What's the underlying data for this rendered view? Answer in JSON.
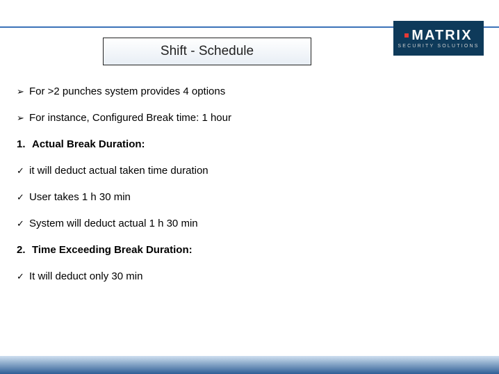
{
  "colors": {
    "rule": "#3b72b8",
    "logo_bg": "#0e3a5a",
    "logo_accent": "#e53935",
    "bottom_grad_top": "#cfe0f0",
    "bottom_grad_bottom": "#2f5f96"
  },
  "logo": {
    "brand": "MATRIX",
    "tagline": "SECURITY SOLUTIONS"
  },
  "title": "Shift - Schedule",
  "items": [
    {
      "kind": "arrow",
      "text": "For >2 punches system provides 4 options",
      "bold": false
    },
    {
      "kind": "arrow",
      "text": "For instance, Configured Break time: 1 hour",
      "bold": false
    },
    {
      "kind": "num",
      "num": "1.",
      "text": "Actual Break Duration:",
      "bold": true
    },
    {
      "kind": "check",
      "text": " it will deduct actual  taken time duration",
      "bold": false
    },
    {
      "kind": "check",
      "text": "User takes 1 h 30 min",
      "bold": false
    },
    {
      "kind": "check",
      "text": "System will deduct actual 1 h 30 min",
      "bold": false
    },
    {
      "kind": "num",
      "num": "2.",
      "text": "Time Exceeding Break Duration:",
      "bold": true,
      "gap": true
    },
    {
      "kind": "check",
      "text": "It will deduct only 30 min",
      "bold": false
    }
  ],
  "glyphs": {
    "arrow": "➢",
    "check": "✓"
  }
}
